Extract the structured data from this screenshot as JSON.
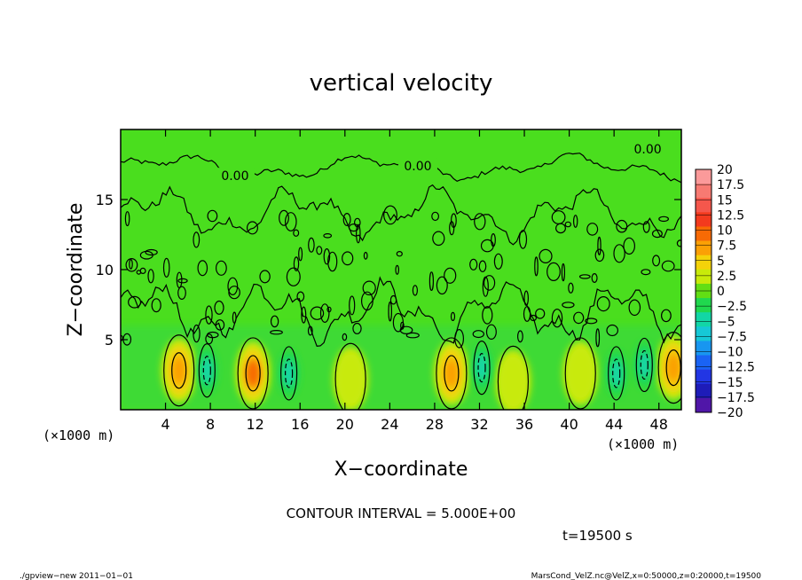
{
  "chart_data": {
    "type": "heatmap",
    "title": "vertical velocity",
    "xlabel": "X−coordinate",
    "ylabel": "Z−coordinate",
    "x_unit_left": "(×1000 m)",
    "x_unit_right": "(×1000 m)",
    "xlim": [
      0,
      50
    ],
    "ylim": [
      0,
      20
    ],
    "x_ticks": [
      "4",
      "8",
      "12",
      "16",
      "20",
      "24",
      "28",
      "32",
      "36",
      "40",
      "44",
      "48"
    ],
    "x_tick_values": [
      4,
      8,
      12,
      16,
      20,
      24,
      28,
      32,
      36,
      40,
      44,
      48
    ],
    "y_ticks": [
      "5",
      "10",
      "15"
    ],
    "y_tick_values": [
      5,
      10,
      15
    ],
    "contour_labels": [
      "0.00",
      "0.00",
      "0.00"
    ],
    "contour_label_positions": [
      [
        10.2,
        16.7
      ],
      [
        26.5,
        17.4
      ],
      [
        47.0,
        18.6
      ]
    ],
    "colorbar": {
      "labels": [
        "20",
        "17.5",
        "15",
        "12.5",
        "10",
        "7.5",
        "5",
        "2.5",
        "0",
        "−2.5",
        "−5",
        "−7.5",
        "−10",
        "−12.5",
        "−15",
        "−17.5",
        "−20"
      ],
      "colors": [
        "#fb9a9a",
        "#f77a72",
        "#f5574c",
        "#f33a1e",
        "#f76a05",
        "#fba005",
        "#f4d20a",
        "#c8ea0a",
        "#62de14",
        "#20d84e",
        "#12d6a6",
        "#16c8d6",
        "#1896f0",
        "#1a63f4",
        "#2236e4",
        "#1e1cb8",
        "#5016a8"
      ]
    },
    "updrafts": [
      {
        "x": 5.2,
        "z": 2.8,
        "peak": 5
      },
      {
        "x": 11.8,
        "z": 2.6,
        "peak": 7
      },
      {
        "x": 20.5,
        "z": 2.2,
        "peak": 3
      },
      {
        "x": 29.5,
        "z": 2.6,
        "peak": 5
      },
      {
        "x": 35.0,
        "z": 2.0,
        "peak": 3
      },
      {
        "x": 41.0,
        "z": 2.6,
        "peak": 3
      },
      {
        "x": 49.3,
        "z": 3.0,
        "peak": 5
      }
    ],
    "downdrafts": [
      {
        "x": 7.7,
        "z": 2.8,
        "peak": -5
      },
      {
        "x": 15.0,
        "z": 2.6,
        "peak": -5
      },
      {
        "x": 32.2,
        "z": 3.0,
        "peak": -5
      },
      {
        "x": 44.2,
        "z": 2.6,
        "peak": -5
      },
      {
        "x": 46.7,
        "z": 3.2,
        "peak": -5
      }
    ]
  },
  "footer": {
    "contour_interval": "CONTOUR INTERVAL = 5.000E+00",
    "time": "t=19500 s",
    "program": "./gpview−new   2011−01−01",
    "source": "MarsCond_VelZ.nc@VelZ,x=0:50000,z=0:20000,t=19500"
  }
}
